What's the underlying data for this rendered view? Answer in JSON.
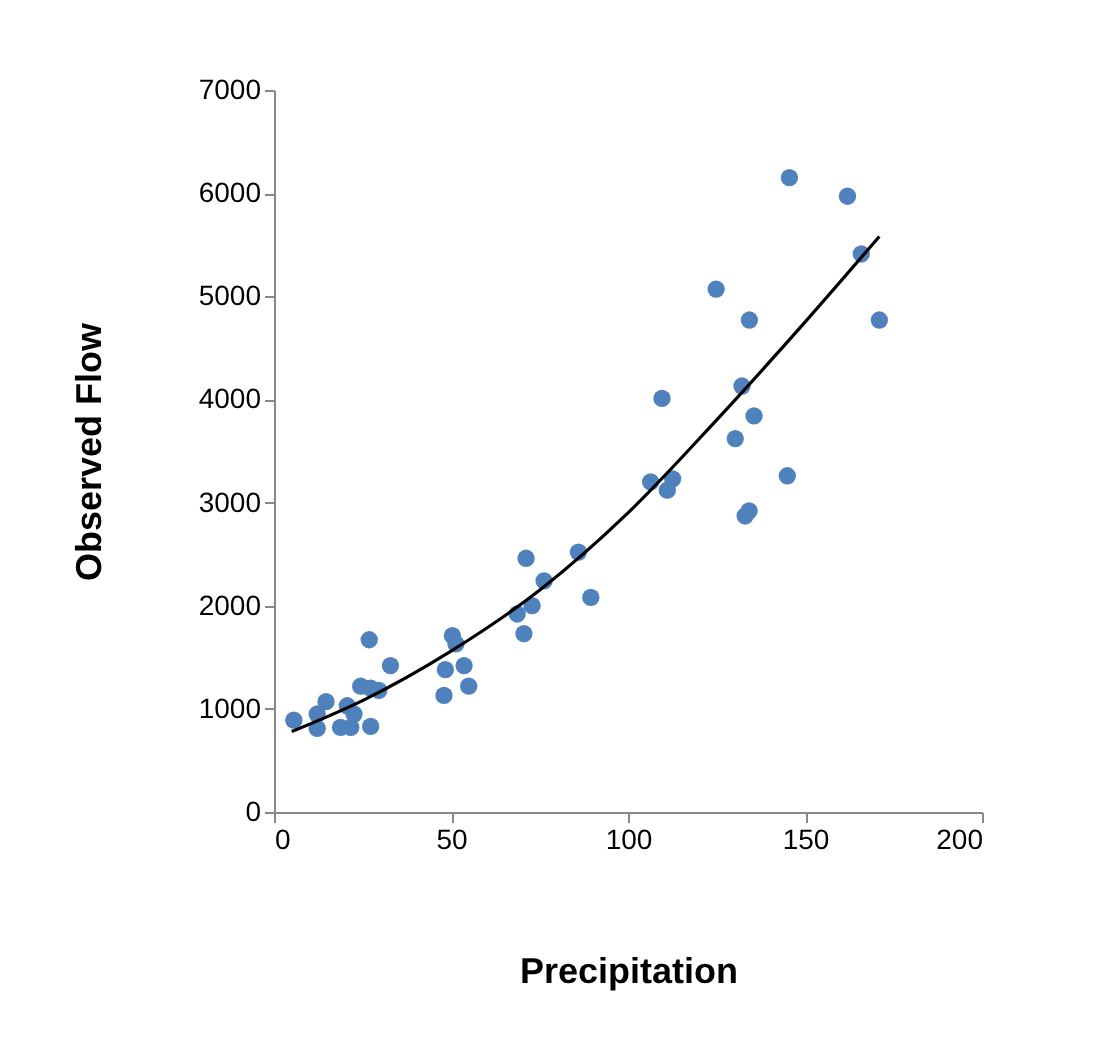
{
  "chart_data": {
    "type": "scatter",
    "xlabel": "Precipitation",
    "ylabel": "Observed Flow",
    "xlim": [
      0,
      200
    ],
    "xticks": [
      0,
      50,
      100,
      150,
      200
    ],
    "ylim": [
      0,
      7000
    ],
    "yticks": [
      0,
      1000,
      2000,
      3000,
      4000,
      5000,
      6000,
      7000
    ],
    "grid": false,
    "marker": "circle",
    "series": [
      {
        "color": "#4f81bd",
        "x": [
          5.6,
          12.2,
          12.2,
          14.7,
          18.8,
          21.7,
          20.7,
          22.6,
          24.5,
          27.3,
          27.3,
          26.9,
          29.6,
          32.9,
          48,
          48.4,
          50.4,
          51.4,
          53.7,
          55,
          68.7,
          70.6,
          71.2,
          72.9,
          76.3,
          86,
          89.5,
          106.4,
          112.6,
          111.1,
          109.6,
          124.9,
          134.3,
          132.2,
          135.6,
          130.3,
          133.1,
          134.2,
          145,
          145.6,
          162,
          165.9,
          171
        ],
        "values": [
          890,
          950,
          810,
          1070,
          820,
          820,
          1030,
          950,
          1220,
          1200,
          830,
          1670,
          1180,
          1420,
          1130,
          1380,
          1710,
          1630,
          1420,
          1220,
          1920,
          1730,
          2460,
          2000,
          2240,
          2520,
          2080,
          3200,
          3230,
          3120,
          4010,
          5070,
          4770,
          4130,
          3840,
          3620,
          2870,
          2920,
          3260,
          6150,
          5970,
          5410,
          4770
        ]
      },
      {
        "type": "line",
        "color": "#000000",
        "marker": "none",
        "line_style": "solid",
        "x": [
          5,
          25,
          50,
          75,
          100,
          125,
          150,
          171
        ],
        "values": [
          780,
          1080,
          1560,
          2150,
          2900,
          3800,
          4750,
          5580
        ]
      }
    ]
  }
}
